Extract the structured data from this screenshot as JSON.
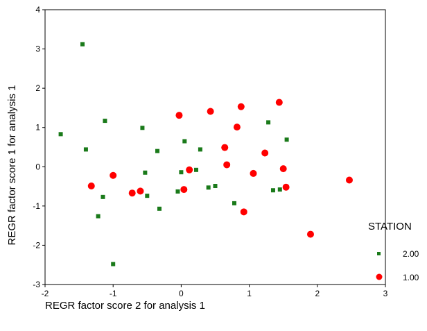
{
  "chart_data": {
    "type": "scatter",
    "xlabel": "REGR factor score   2 for analysis    1",
    "ylabel": "REGR factor score   1 for analysis    1",
    "xlim": [
      -2,
      3
    ],
    "ylim": [
      -3,
      4
    ],
    "xticks": [
      "-2",
      "-1",
      "0",
      "1",
      "2",
      "3"
    ],
    "yticks": [
      "-3",
      "-2",
      "-1",
      "0",
      "1",
      "2",
      "3",
      "4"
    ],
    "grid": false,
    "legend": {
      "title": "STATION",
      "placement": "right",
      "entries": [
        "2.00",
        "1.00"
      ]
    },
    "series": [
      {
        "name": "2.00",
        "marker": "square",
        "color": "#1a7a1a",
        "points": [
          [
            -1.45,
            3.12
          ],
          [
            -1.77,
            0.83
          ],
          [
            -1.12,
            1.17
          ],
          [
            -1.4,
            0.44
          ],
          [
            -0.57,
            0.99
          ],
          [
            -0.35,
            0.4
          ],
          [
            0.05,
            0.65
          ],
          [
            0.28,
            0.44
          ],
          [
            1.28,
            1.13
          ],
          [
            1.55,
            0.69
          ],
          [
            -0.53,
            -0.15
          ],
          [
            0.0,
            -0.14
          ],
          [
            0.22,
            -0.08
          ],
          [
            -0.05,
            -0.63
          ],
          [
            0.4,
            -0.53
          ],
          [
            0.5,
            -0.49
          ],
          [
            -0.5,
            -0.74
          ],
          [
            -1.15,
            -0.77
          ],
          [
            -0.32,
            -1.07
          ],
          [
            -1.22,
            -1.26
          ],
          [
            0.78,
            -0.93
          ],
          [
            1.35,
            -0.6
          ],
          [
            1.45,
            -0.58
          ],
          [
            -1.0,
            -2.48
          ]
        ]
      },
      {
        "name": "1.00",
        "marker": "circle",
        "color": "#ff0000",
        "points": [
          [
            1.44,
            1.64
          ],
          [
            0.88,
            1.53
          ],
          [
            0.43,
            1.41
          ],
          [
            -0.03,
            1.31
          ],
          [
            0.82,
            1.01
          ],
          [
            0.64,
            0.49
          ],
          [
            1.23,
            0.35
          ],
          [
            0.67,
            0.05
          ],
          [
            0.12,
            -0.08
          ],
          [
            1.5,
            -0.05
          ],
          [
            1.06,
            -0.17
          ],
          [
            -1.0,
            -0.22
          ],
          [
            2.47,
            -0.34
          ],
          [
            -1.32,
            -0.49
          ],
          [
            1.54,
            -0.52
          ],
          [
            0.04,
            -0.58
          ],
          [
            -0.6,
            -0.62
          ],
          [
            -0.72,
            -0.67
          ],
          [
            0.92,
            -1.15
          ],
          [
            1.9,
            -1.72
          ]
        ]
      }
    ]
  }
}
